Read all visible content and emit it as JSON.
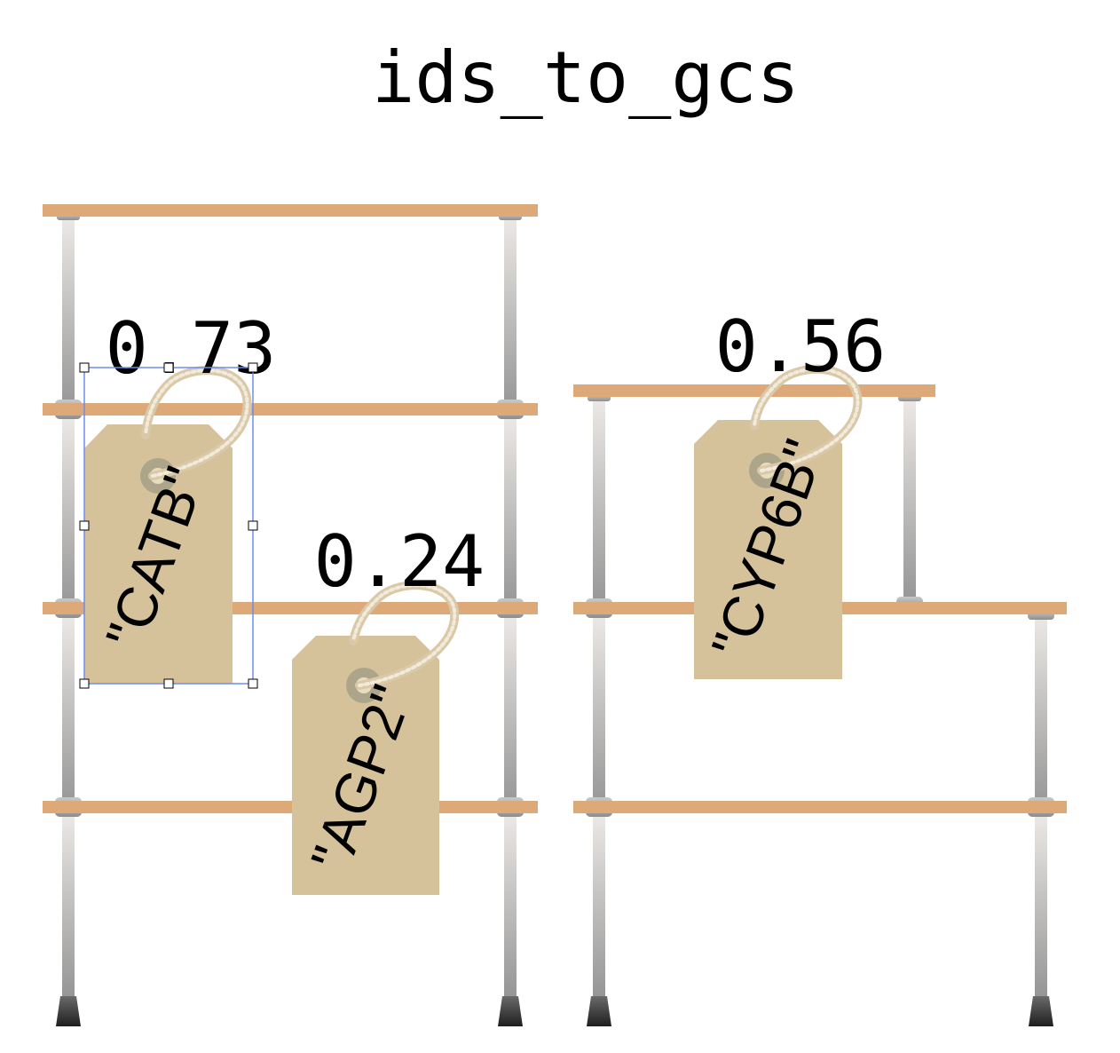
{
  "title": "ids_to_gcs",
  "colors": {
    "shelf": "#DEA978",
    "tag": "#D6C29A",
    "tag_hole": "#ADA58A",
    "rope": "#E6D8BC",
    "pole_light": "#E9E6E3",
    "pole_dark": "#9B9B9B",
    "foot": "#2C2C2C",
    "selection": "#6C8EEF"
  },
  "items": [
    {
      "label": "\"CATB\"",
      "value": "0.73",
      "selected": true
    },
    {
      "label": "\"AGP2\"",
      "value": "0.24",
      "selected": false
    },
    {
      "label": "\"CYP6B\"",
      "value": "0.56",
      "selected": false
    }
  ]
}
